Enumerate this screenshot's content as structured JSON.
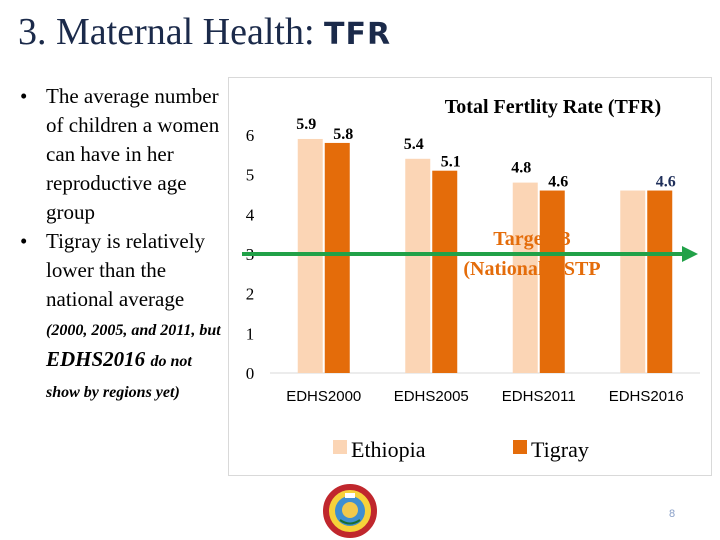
{
  "slide": {
    "title_main": "3. Maternal Health:",
    "title_tfr": "TFR",
    "page_number": "8"
  },
  "bullets": {
    "b1": "The average number of children a women can have in her reproductive age group",
    "b2_text": "Tigray is relatively lower than the national average",
    "b2_years": "(2000, 2005, and 2011, but",
    "b2_source": "EDHS2016",
    "b2_note1": "do not",
    "b2_note2": "show by regions yet)"
  },
  "chart_data": {
    "type": "bar",
    "title": "Total Fertlity Rate (TFR)",
    "categories": [
      "EDHS2000",
      "EDHS2005",
      "EDHS2011",
      "EDHS2016"
    ],
    "series": [
      {
        "name": "Ethiopia",
        "values": [
          5.9,
          5.4,
          4.8,
          4.6
        ],
        "color": "#fbd5b5",
        "labels": [
          "5.9",
          "5.4",
          "4.8",
          ""
        ]
      },
      {
        "name": "Tigray",
        "values": [
          5.8,
          5.1,
          4.6,
          4.6
        ],
        "color": "#e46c0a",
        "labels": [
          "5.8",
          "5.1",
          "4.6",
          "4.6"
        ]
      }
    ],
    "ylim": [
      0,
      6
    ],
    "yticks": [
      "0",
      "1",
      "2",
      "3",
      "4",
      "5",
      "6"
    ],
    "target": {
      "value": 3,
      "label_line1": "Target: 3",
      "label_line2": "(National HSTP",
      "color": "#21a148"
    },
    "legend_position": "bottom"
  }
}
